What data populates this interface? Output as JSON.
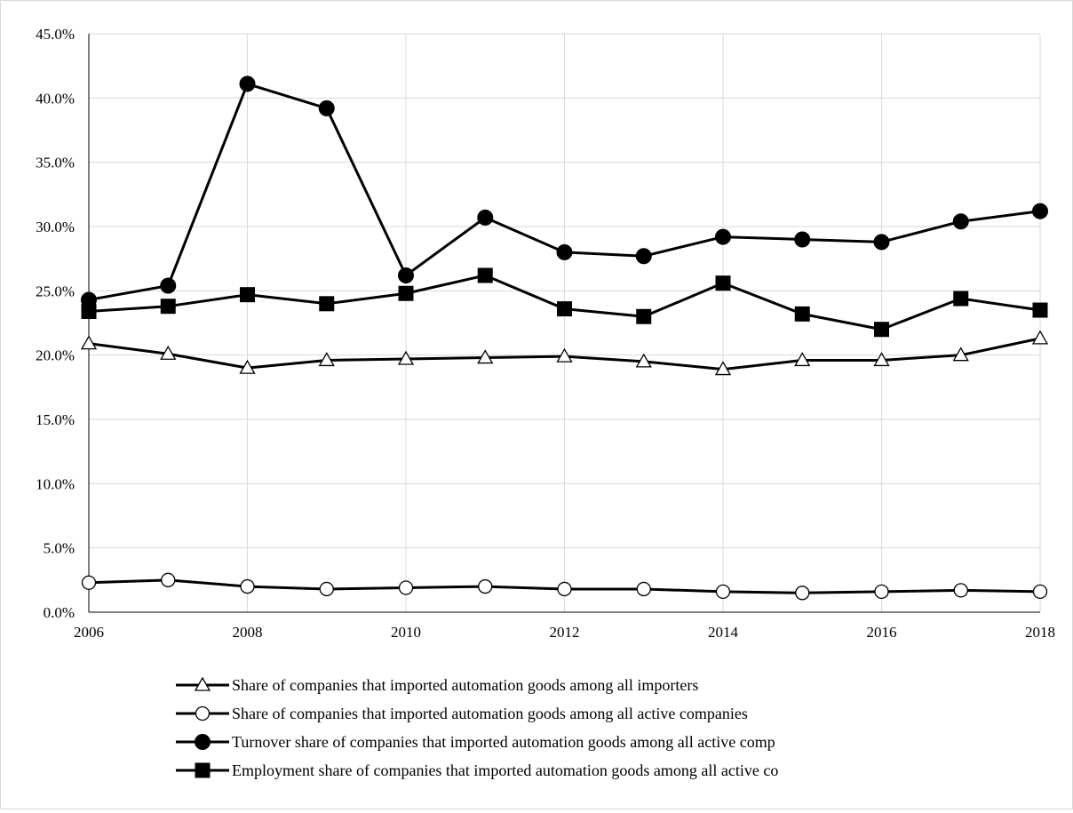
{
  "chart_data": {
    "type": "line",
    "x": [
      2006,
      2007,
      2008,
      2009,
      2010,
      2011,
      2012,
      2013,
      2014,
      2015,
      2016,
      2017,
      2018
    ],
    "x_tick_labels": [
      "2006",
      "2008",
      "2010",
      "2012",
      "2014",
      "2016",
      "2018"
    ],
    "x_tick_values": [
      2006,
      2008,
      2010,
      2012,
      2014,
      2016,
      2018
    ],
    "y_tick_labels": [
      "0.0%",
      "5.0%",
      "10.0%",
      "15.0%",
      "20.0%",
      "25.0%",
      "30.0%",
      "35.0%",
      "40.0%",
      "45.0%"
    ],
    "y_tick_values": [
      0,
      5,
      10,
      15,
      20,
      25,
      30,
      35,
      40,
      45
    ],
    "ylim": [
      0,
      45
    ],
    "xlim": [
      2006,
      2018
    ],
    "grid": true,
    "legend_position": "bottom",
    "series": [
      {
        "name": "Share of companies that imported automation goods among all importers",
        "marker": "triangle-open",
        "values": [
          20.9,
          20.1,
          19.0,
          19.6,
          19.7,
          19.8,
          19.9,
          19.5,
          18.9,
          19.6,
          19.6,
          20.0,
          21.3
        ]
      },
      {
        "name": "Share of companies that imported automation goods among all active companies",
        "marker": "circle-open",
        "values": [
          2.3,
          2.5,
          2.0,
          1.8,
          1.9,
          2.0,
          1.8,
          1.8,
          1.6,
          1.5,
          1.6,
          1.7,
          1.6
        ]
      },
      {
        "name": "Turnover share of companies that imported automation goods among all active comp",
        "marker": "circle-filled",
        "values": [
          24.3,
          25.4,
          41.1,
          39.2,
          26.2,
          30.7,
          28.0,
          27.7,
          29.2,
          29.0,
          28.8,
          30.4,
          31.2
        ]
      },
      {
        "name": "Employment share of companies that imported automation goods among all active co",
        "marker": "square-filled",
        "values": [
          23.4,
          23.8,
          24.7,
          24.0,
          24.8,
          26.2,
          23.6,
          23.0,
          25.6,
          23.2,
          22.0,
          24.4,
          23.5
        ]
      }
    ],
    "colors": {
      "line": "#000000",
      "grid": "#d9d9d9",
      "axis": "#000000"
    }
  }
}
